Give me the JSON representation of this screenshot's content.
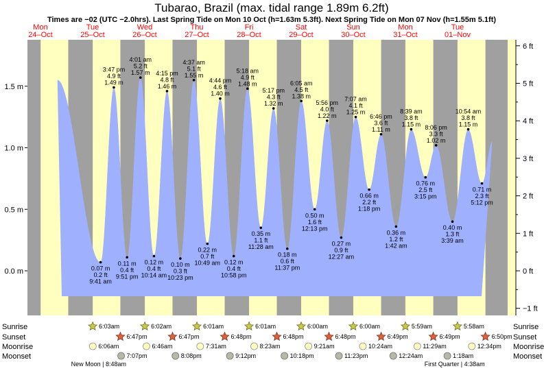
{
  "title": "Tubarao, Brazil (max. tidal range 1.89m 6.2ft)",
  "subtitle": "Times are −02 (UTC −2.0hrs). Last Spring Tide on Mon 10 Oct (h=1.63m 5.3ft). Next Spring Tide on Mon 07 Nov (h=1.55m 5.1ft)",
  "colors": {
    "night": "#a0a0a0",
    "day": "#ffffc0",
    "water": "#9fb0ff",
    "accent": "#ff0000"
  },
  "chart_data": {
    "type": "area",
    "title": "Tubarao, Brazil (max. tidal range 1.89m 6.2ft)",
    "y_left_unit": "m",
    "y_right_unit": "ft",
    "ylim_m": [
      -0.18,
      1.75
    ],
    "y_left_ticks": [
      {
        "v": 0.0,
        "label": "0.0 m"
      },
      {
        "v": 0.5,
        "label": "0.5 m"
      },
      {
        "v": 1.0,
        "label": "1.0 m"
      },
      {
        "v": 1.5,
        "label": "1.5 m"
      }
    ],
    "y_right_ticks": [
      {
        "v": -1,
        "label": "−1 ft"
      },
      {
        "v": 0,
        "label": "0 ft"
      },
      {
        "v": 1,
        "label": "1 ft"
      },
      {
        "v": 2,
        "label": "2 ft"
      },
      {
        "v": 3,
        "label": "3 ft"
      },
      {
        "v": 4,
        "label": "4 ft"
      },
      {
        "v": 5,
        "label": "5 ft"
      },
      {
        "v": 6,
        "label": "6 ft"
      }
    ],
    "days": [
      {
        "name": "Mon",
        "date": "24–Oct"
      },
      {
        "name": "Tue",
        "date": "25–Oct"
      },
      {
        "name": "Wed",
        "date": "26–Oct"
      },
      {
        "name": "Thu",
        "date": "27–Oct"
      },
      {
        "name": "Fri",
        "date": "28–Oct"
      },
      {
        "name": "Sat",
        "date": "29–Oct"
      },
      {
        "name": "Sun",
        "date": "30–Oct"
      },
      {
        "name": "Mon",
        "date": "31–Oct"
      },
      {
        "name": "Tue",
        "date": "01–Nov"
      }
    ],
    "tides": [
      {
        "day": 0,
        "hour": 13.8,
        "m": 1.55,
        "type": "high",
        "labels": []
      },
      {
        "day": 1,
        "hour": 9.68,
        "m": 0.07,
        "type": "low",
        "labels": [
          "0.07 m",
          "0.2 ft",
          "9:41 am"
        ]
      },
      {
        "day": 1,
        "hour": 15.78,
        "m": 1.49,
        "type": "high",
        "labels": [
          "3:47 pm",
          "4.9 ft",
          "1.49 m"
        ]
      },
      {
        "day": 1,
        "hour": 21.85,
        "m": 0.11,
        "type": "low",
        "labels": [
          "0.11 m",
          "0.4 ft",
          "9:51 pm"
        ]
      },
      {
        "day": 2,
        "hour": 4.02,
        "m": 1.57,
        "type": "high",
        "labels": [
          "4:01 am",
          "5.2 ft",
          "1.57 m"
        ]
      },
      {
        "day": 2,
        "hour": 10.23,
        "m": 0.12,
        "type": "low",
        "labels": [
          "0.12 m",
          "0.4 ft",
          "10:14 am"
        ]
      },
      {
        "day": 2,
        "hour": 16.25,
        "m": 1.46,
        "type": "high",
        "labels": [
          "4:15 pm",
          "4.8 ft",
          "1.46 m"
        ]
      },
      {
        "day": 2,
        "hour": 22.38,
        "m": 0.1,
        "type": "low",
        "labels": [
          "0.10 m",
          "0.3 ft",
          "10:23 pm"
        ]
      },
      {
        "day": 3,
        "hour": 4.62,
        "m": 1.55,
        "type": "high",
        "labels": [
          "4:37 am",
          "5.1 ft",
          "1.55 m"
        ]
      },
      {
        "day": 3,
        "hour": 10.82,
        "m": 0.22,
        "type": "low",
        "labels": [
          "0.22 m",
          "0.7 ft",
          "10:49 am"
        ]
      },
      {
        "day": 3,
        "hour": 16.73,
        "m": 1.4,
        "type": "high",
        "labels": [
          "4:44 pm",
          "4.6 ft",
          "1.40 m"
        ]
      },
      {
        "day": 3,
        "hour": 22.97,
        "m": 0.12,
        "type": "low",
        "labels": [
          "0.12 m",
          "0.4 ft",
          "10:58 pm"
        ]
      },
      {
        "day": 4,
        "hour": 5.3,
        "m": 1.48,
        "type": "high",
        "labels": [
          "5:18 am",
          "4.9 ft",
          "1.48 m"
        ]
      },
      {
        "day": 4,
        "hour": 11.47,
        "m": 0.35,
        "type": "low",
        "labels": [
          "0.35 m",
          "1.1 ft",
          "11:28 am"
        ]
      },
      {
        "day": 4,
        "hour": 17.28,
        "m": 1.32,
        "type": "high",
        "labels": [
          "5:17 pm",
          "4.3 ft",
          "1.32 m"
        ]
      },
      {
        "day": 4,
        "hour": 23.62,
        "m": 0.18,
        "type": "low",
        "labels": [
          "0.18 m",
          "0.6 ft",
          "11:37 pm"
        ]
      },
      {
        "day": 5,
        "hour": 6.08,
        "m": 1.38,
        "type": "high",
        "labels": [
          "6:05 am",
          "4.5 ft",
          "1.38 m"
        ]
      },
      {
        "day": 5,
        "hour": 12.22,
        "m": 0.5,
        "type": "low",
        "labels": [
          "0.50 m",
          "1.6 ft",
          "12:13 pm"
        ]
      },
      {
        "day": 5,
        "hour": 17.93,
        "m": 1.22,
        "type": "high",
        "labels": [
          "5:56 pm",
          "4.0 ft",
          "1.22 m"
        ]
      },
      {
        "day": 6,
        "hour": 0.45,
        "m": 0.27,
        "type": "low",
        "labels": [
          "0.27 m",
          "0.9 ft",
          "12:27 am"
        ]
      },
      {
        "day": 6,
        "hour": 7.12,
        "m": 1.25,
        "type": "high",
        "labels": [
          "7:07 am",
          "4.1 ft",
          "1.25 m"
        ]
      },
      {
        "day": 6,
        "hour": 13.3,
        "m": 0.66,
        "type": "low",
        "labels": [
          "0.66 m",
          "2.2 ft",
          "1:18 pm"
        ]
      },
      {
        "day": 6,
        "hour": 18.77,
        "m": 1.11,
        "type": "high",
        "labels": [
          "6:46 pm",
          "3.6 ft",
          "1.11 m"
        ]
      },
      {
        "day": 7,
        "hour": 1.7,
        "m": 0.36,
        "type": "low",
        "labels": [
          "0.36 m",
          "1.2 ft",
          "1:42 am"
        ]
      },
      {
        "day": 7,
        "hour": 8.65,
        "m": 1.15,
        "type": "high",
        "labels": [
          "8:39 am",
          "3.8 ft",
          "1.15 m"
        ]
      },
      {
        "day": 7,
        "hour": 15.25,
        "m": 0.76,
        "type": "low",
        "labels": [
          "0.76 m",
          "2.5 ft",
          "3:15 pm"
        ]
      },
      {
        "day": 7,
        "hour": 20.1,
        "m": 1.02,
        "type": "high",
        "labels": [
          "8:06 pm",
          "3.3 ft",
          "1.02 m"
        ]
      },
      {
        "day": 8,
        "hour": 3.65,
        "m": 0.4,
        "type": "low",
        "labels": [
          "0.40 m",
          "1.3 ft",
          "3:39 am"
        ]
      },
      {
        "day": 8,
        "hour": 10.9,
        "m": 1.15,
        "type": "high",
        "labels": [
          "10:54 am",
          "3.8 ft",
          "1.15 m"
        ]
      },
      {
        "day": 8,
        "hour": 17.2,
        "m": 0.71,
        "type": "low",
        "labels": [
          "0.71 m",
          "2.3 ft",
          "5:12 pm"
        ]
      },
      {
        "day": 8,
        "hour": 22.0,
        "m": 1.05,
        "type": "high",
        "labels": []
      }
    ],
    "sun": [
      {
        "day": 0,
        "rise": 6.07,
        "set": 18.78
      },
      {
        "day": 1,
        "rise": 6.05,
        "set": 18.78,
        "rise_label": "6:03am",
        "set_label": "6:47pm"
      },
      {
        "day": 2,
        "rise": 6.03,
        "set": 18.78,
        "rise_label": "6:02am",
        "set_label": "6:47pm"
      },
      {
        "day": 3,
        "rise": 6.02,
        "set": 18.8,
        "rise_label": "6:01am",
        "set_label": "6:48pm"
      },
      {
        "day": 4,
        "rise": 6.02,
        "set": 18.8,
        "rise_label": "6:01am",
        "set_label": "6:48pm"
      },
      {
        "day": 5,
        "rise": 6.0,
        "set": 18.8,
        "rise_label": "6:00am",
        "set_label": "6:48pm"
      },
      {
        "day": 6,
        "rise": 6.0,
        "set": 18.82,
        "rise_label": "6:00am",
        "set_label": "6:49pm"
      },
      {
        "day": 7,
        "rise": 5.98,
        "set": 18.82,
        "rise_label": "5:59am",
        "set_label": "6:49pm"
      },
      {
        "day": 8,
        "rise": 5.97,
        "set": 18.83,
        "rise_label": "5:58am",
        "set_label": "6:50pm"
      }
    ],
    "moonrise": [
      {
        "day": 1,
        "hour": 6.1,
        "label": "6:06am"
      },
      {
        "day": 2,
        "hour": 6.77,
        "label": "6:46am"
      },
      {
        "day": 3,
        "hour": 7.52,
        "label": "7:31am"
      },
      {
        "day": 4,
        "hour": 8.38,
        "label": "8:23am"
      },
      {
        "day": 5,
        "hour": 9.35,
        "label": "9:21am"
      },
      {
        "day": 6,
        "hour": 10.4,
        "label": "10:24am"
      },
      {
        "day": 7,
        "hour": 11.48,
        "label": "11:29am"
      },
      {
        "day": 8,
        "hour": 12.57,
        "label": "12:34pm"
      }
    ],
    "moonset": [
      {
        "day": 1,
        "hour": 19.12,
        "label": "7:07pm"
      },
      {
        "day": 2,
        "hour": 20.13,
        "label": "8:08pm"
      },
      {
        "day": 3,
        "hour": 21.2,
        "label": "9:12pm"
      },
      {
        "day": 4,
        "hour": 22.3,
        "label": "10:18pm"
      },
      {
        "day": 5,
        "hour": 23.38,
        "label": "11:23pm"
      },
      {
        "day": 7,
        "hour": 0.4,
        "label": "12:24am"
      },
      {
        "day": 8,
        "hour": 1.3,
        "label": "1:18am"
      }
    ]
  },
  "rows": {
    "sunrise": "Sunrise",
    "sunset": "Sunset",
    "moonrise": "Moonrise",
    "moonset": "Moonset"
  },
  "moon_phases": [
    {
      "label": "New Moon | 8:48am",
      "day": 1,
      "hour": 8.8
    },
    {
      "label": "First Quarter | 4:38am",
      "day": 8,
      "hour": 4.63
    }
  ]
}
